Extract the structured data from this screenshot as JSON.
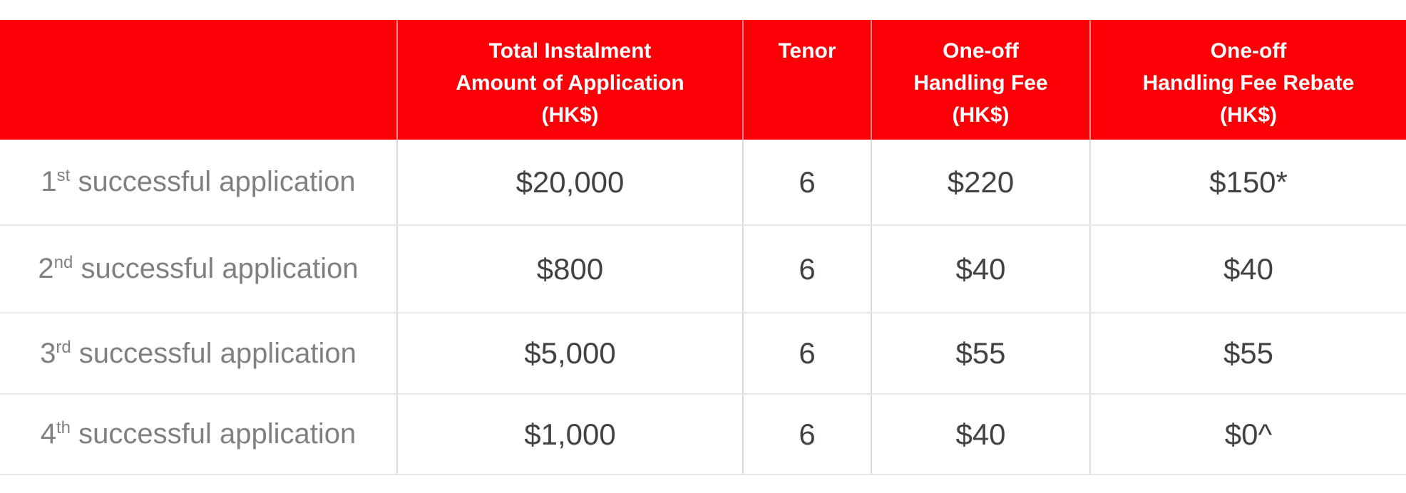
{
  "colors": {
    "header_bg": "#fc0007",
    "header_text": "#ffffff",
    "row_label": "#7e8084",
    "value_text": "#3f4246",
    "grid_h": "#e7e7e7",
    "grid_v": "#dcdcdc"
  },
  "chart_data": {
    "type": "table",
    "title": "",
    "columns": [
      "",
      "Total Instalment\nAmount of Application\n(HK$)",
      "Tenor",
      "One-off\nHandling Fee\n(HK$)",
      "One-off\nHandling Fee Rebate\n(HK$)"
    ],
    "rows": [
      {
        "label": {
          "ordinal": "1",
          "suffix": "st",
          "rest": " successful application"
        },
        "cells": [
          "$20,000",
          "6",
          "$220",
          "$150*"
        ]
      },
      {
        "label": {
          "ordinal": "2",
          "suffix": "nd",
          "rest": " successful application"
        },
        "cells": [
          "$800",
          "6",
          "$40",
          "$40"
        ]
      },
      {
        "label": {
          "ordinal": "3",
          "suffix": "rd",
          "rest": " successful application"
        },
        "cells": [
          "$5,000",
          "6",
          "$55",
          "$55"
        ]
      },
      {
        "label": {
          "ordinal": "4",
          "suffix": "th",
          "rest": " successful application"
        },
        "cells": [
          "$1,000",
          "6",
          "$40",
          "$0^"
        ]
      }
    ]
  }
}
